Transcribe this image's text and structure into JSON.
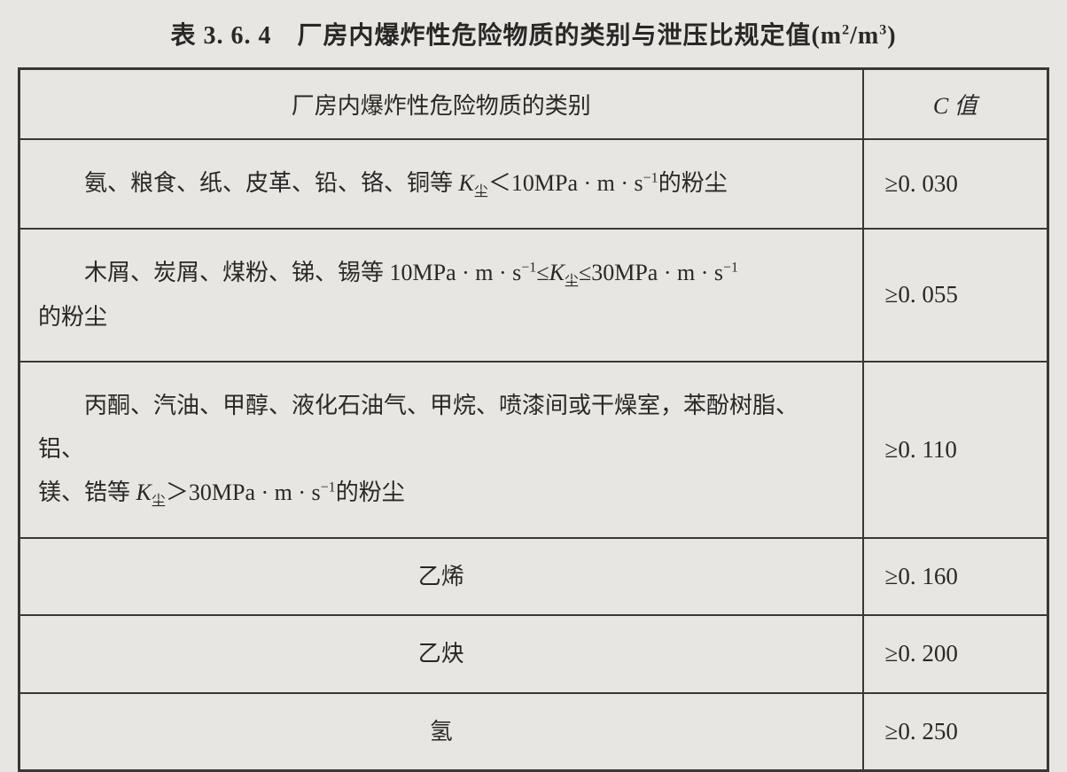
{
  "title_prefix": "表 3. 6. 4　厂房内爆炸性危险物质的类别与泄压比规定值(",
  "title_unit_num": "m",
  "title_sup1": "2",
  "title_slash": "/",
  "title_unit_den": "m",
  "title_sup2": "3",
  "title_suffix": ")",
  "header": {
    "category": "厂房内爆炸性危险物质的类别",
    "c_letter": "C",
    "c_text": " 值"
  },
  "rows": [
    {
      "pre": "氨、粮食、纸、皮革、铅、铬、铜等 ",
      "kvar": "K",
      "ksub": "尘",
      "mid": "＜10MPa · m · s",
      "sup": "−1",
      "post": "的粉尘",
      "cvalue": "≥0. 030"
    },
    {
      "pre": "木屑、炭屑、煤粉、锑、锡等 10MPa · m · s",
      "sup1": "−1",
      "mid1": "≤",
      "kvar": "K",
      "ksub": "尘",
      "mid2": "≤30MPa · m · s",
      "sup2": "−1",
      "post_line2": "的粉尘",
      "cvalue": "≥0. 055"
    },
    {
      "line1_pre": "丙酮、汽油、甲醇、液化石油气、甲烷、喷漆间或干燥室，苯酚树脂、铝、",
      "line2_pre": "镁、锆等 ",
      "kvar": "K",
      "ksub": "尘",
      "mid": "＞30MPa · m · s",
      "sup": "−1",
      "post": "的粉尘",
      "cvalue": "≥0. 110"
    },
    {
      "text": "乙烯",
      "cvalue": "≥0. 160"
    },
    {
      "text": "乙炔",
      "cvalue": "≥0. 200"
    },
    {
      "text": "氢",
      "cvalue": "≥0. 250"
    }
  ],
  "colors": {
    "background": "#e8e6e2",
    "border": "#3a3835",
    "text": "#2a2826"
  },
  "table_style": {
    "outer_border_width": 3,
    "inner_border_width": 2,
    "cell_fontsize": 26,
    "title_fontsize": 28
  }
}
